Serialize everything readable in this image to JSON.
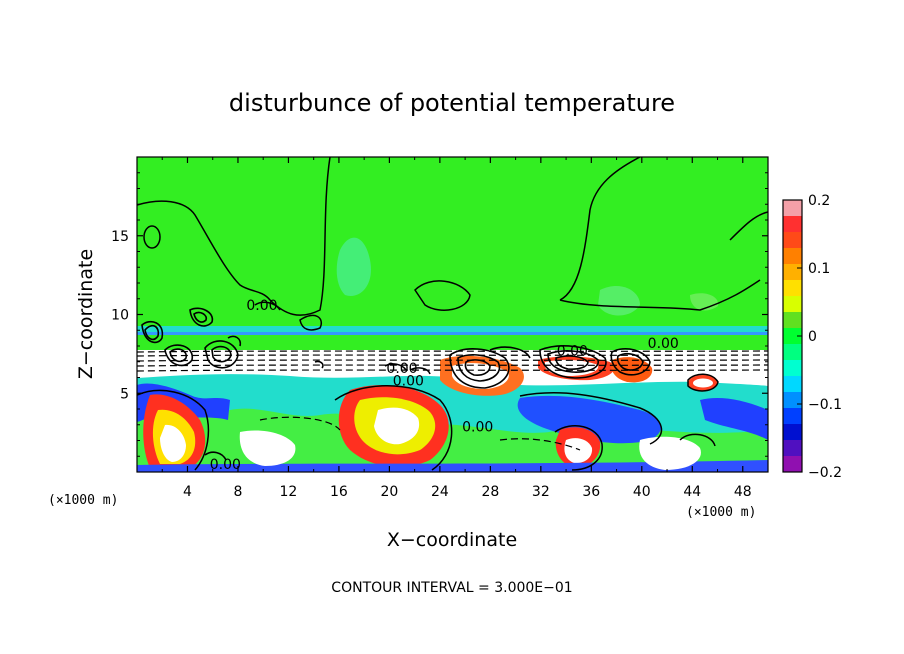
{
  "chart_data": {
    "type": "heatmap",
    "title": "disturbunce of potential temperature",
    "xlabel": "X−coordinate",
    "ylabel": "Z−coordinate",
    "x_unit_left": "(×1000 m)",
    "x_unit_right": "(×1000 m)",
    "xlim": [
      0,
      50
    ],
    "ylim": [
      0,
      20
    ],
    "x_ticks": [
      4,
      8,
      12,
      16,
      20,
      24,
      28,
      32,
      36,
      40,
      44,
      48
    ],
    "y_ticks": [
      5,
      10,
      15
    ],
    "contour_interval_text": "CONTOUR INTERVAL = 3.000E−01",
    "contour_labels": [
      {
        "text": "0.00",
        "x": 9.9,
        "z": 10.6
      },
      {
        "text": "0.00",
        "x": 41.7,
        "z": 8.2
      },
      {
        "text": "0.00",
        "x": 34.5,
        "z": 7.7
      },
      {
        "text": "0.00",
        "x": 21.0,
        "z": 6.6
      },
      {
        "text": "0.00",
        "x": 21.5,
        "z": 5.8
      },
      {
        "text": "0.00",
        "x": 27.0,
        "z": 2.9
      },
      {
        "text": "0.00",
        "x": 7.0,
        "z": 0.5
      }
    ],
    "colorbar": {
      "range": [
        -0.2,
        0.2
      ],
      "ticks": [
        "0.2",
        "0.1",
        "0",
        "−0.1",
        "−0.2"
      ],
      "colors": [
        "#f4a0a8",
        "#ff3030",
        "#ff4a18",
        "#ff8000",
        "#ffb000",
        "#ffe000",
        "#d8ff00",
        "#60e020",
        "#00ff30",
        "#00ff80",
        "#00ffd0",
        "#00d8ff",
        "#0090ff",
        "#0040ff",
        "#0010d0",
        "#5010c0",
        "#9010b0"
      ]
    },
    "field_colors": {
      "background": "#33ee22",
      "cyan": "#22ddaa",
      "white": "#ffffff",
      "blue": "#2040ff",
      "red": "#ff3020",
      "yellow": "#eeee00"
    }
  }
}
